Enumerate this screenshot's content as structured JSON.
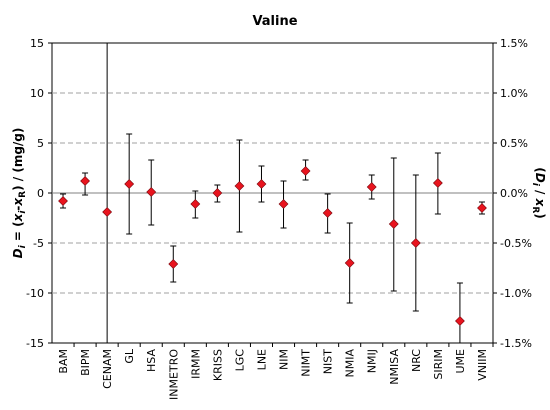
{
  "chart_data": {
    "type": "scatter",
    "title": "Valine",
    "ylabel_left": "D_i = (x_i-x_R) / (mg/g)",
    "ylabel_right": "(D_i / x_R)",
    "ylim": [
      -15,
      15
    ],
    "y_ticks": [
      "15",
      "10",
      "5",
      "0",
      "-5",
      "-10",
      "-15"
    ],
    "y2_ticks": [
      "1.5%",
      "1.0%",
      "0.5%",
      "0.0%",
      "-0.5%",
      "-1.0%",
      "-1.5%"
    ],
    "grid": "dashed horizontal",
    "categories": [
      "BAM",
      "BIPM",
      "CENAM",
      "GL",
      "HSA",
      "INMETRO",
      "IRMM",
      "KRISS",
      "LGC",
      "LNE",
      "NIM",
      "NIMT",
      "NIST",
      "NMIA",
      "NMIJ",
      "NMISA",
      "NRC",
      "SIRIM",
      "UME",
      "VNIIM"
    ],
    "values": [
      -0.8,
      1.2,
      -1.9,
      0.9,
      0.1,
      -7.1,
      -1.1,
      0.0,
      0.7,
      0.9,
      -1.1,
      2.2,
      -2.0,
      -7.0,
      0.6,
      -3.1,
      -5.0,
      1.0,
      -12.8,
      -1.5
    ],
    "error_low": [
      -1.5,
      -0.2,
      -15.0,
      -4.1,
      -3.2,
      -8.9,
      -2.5,
      -0.9,
      -3.9,
      -0.9,
      -3.5,
      1.3,
      -4.0,
      -11.0,
      -0.6,
      -9.8,
      -11.8,
      -2.1,
      -15.0,
      -2.1
    ],
    "error_high": [
      -0.1,
      2.0,
      15.0,
      5.9,
      3.3,
      -5.3,
      0.2,
      0.8,
      5.3,
      2.7,
      1.2,
      3.3,
      -0.1,
      -3.0,
      1.8,
      3.5,
      1.8,
      4.0,
      -9.0,
      -0.9
    ],
    "marker_color": "#e8141e",
    "marker_edge": "#7a0a10",
    "error_color": "#000000",
    "grid_color": "#a0a0a0"
  }
}
